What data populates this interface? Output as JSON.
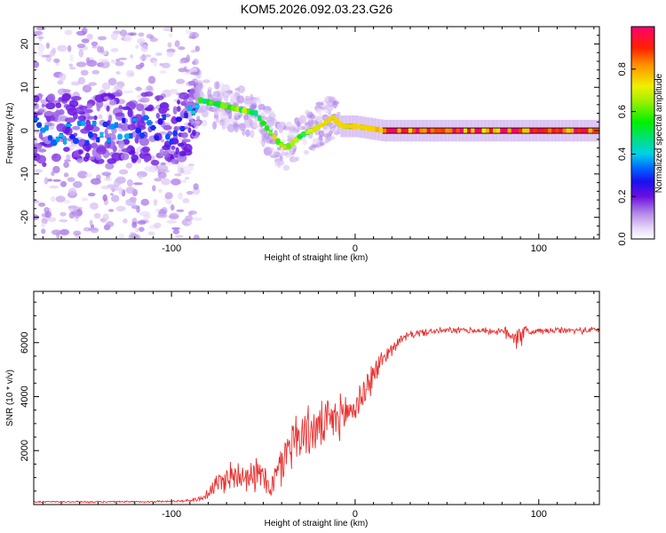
{
  "title": "KOM5.2026.092.03.23.G26",
  "chart_data": [
    {
      "type": "heatmap",
      "xlabel": "Height of straight line (km)",
      "ylabel": "Frequency (Hz)",
      "xlim": [
        -175,
        133
      ],
      "ylim": [
        -25,
        24
      ],
      "xticks": [
        -100,
        0,
        100
      ],
      "yticks": [
        -20,
        -10,
        0,
        10,
        20
      ],
      "xtick_labels": [
        "-100",
        "0",
        "100"
      ],
      "ytick_labels": [
        "-20",
        "-10",
        "0",
        "10",
        "20"
      ],
      "colorbar": {
        "label": "Normalized spectral amplitude",
        "range": [
          0,
          1
        ],
        "ticks": [
          0.0,
          0.2,
          0.4,
          0.6,
          0.8
        ],
        "tick_labels": [
          "0.0",
          "0.2",
          "0.4",
          "0.6",
          "0.8"
        ]
      },
      "ridge": {
        "x": [
          -180,
          -150,
          -120,
          -95,
          -85,
          -75,
          -65,
          -55,
          -48,
          -42,
          -38,
          -30,
          -20,
          -13,
          -8,
          0,
          15,
          40,
          80,
          133
        ],
        "freq": [
          0,
          0,
          1,
          0,
          7,
          6,
          5,
          4,
          0,
          -3,
          -4,
          -1,
          1,
          3,
          1,
          1,
          0,
          0,
          0,
          0
        ],
        "peak_amplitude": [
          0.3,
          0.3,
          0.3,
          0.25,
          0.45,
          0.5,
          0.55,
          0.5,
          0.6,
          0.65,
          0.65,
          0.55,
          0.65,
          0.7,
          0.75,
          0.8,
          0.95,
          0.95,
          0.95,
          1.0
        ]
      }
    },
    {
      "type": "line",
      "xlabel": "Height of straight line (km)",
      "ylabel": "SNR (10 * v/v)",
      "xlim": [
        -175,
        133
      ],
      "ylim": [
        0,
        7900
      ],
      "xticks": [
        -100,
        0,
        100
      ],
      "yticks": [
        2000,
        4000,
        6000
      ],
      "xtick_labels": [
        "-100",
        "0",
        "100"
      ],
      "ytick_labels": [
        "2000",
        "4000",
        "6000"
      ],
      "color": "#e8302f",
      "series": [
        {
          "name": "SNR",
          "x": [
            -175,
            -150,
            -120,
            -100,
            -90,
            -83,
            -78,
            -70,
            -60,
            -50,
            -45,
            -40,
            -35,
            -30,
            -20,
            -10,
            0,
            10,
            15,
            20,
            25,
            30,
            40,
            50,
            60,
            70,
            80,
            88,
            95,
            110,
            120,
            133
          ],
          "values": [
            100,
            100,
            100,
            120,
            150,
            250,
            600,
            1000,
            1200,
            1000,
            700,
            1500,
            2400,
            2600,
            2800,
            3200,
            3600,
            4800,
            5400,
            5800,
            6100,
            6300,
            6400,
            6450,
            6450,
            6450,
            6400,
            6300,
            6400,
            6450,
            6450,
            6480
          ],
          "noise_amplitude": [
            40,
            40,
            40,
            40,
            60,
            150,
            450,
            700,
            800,
            800,
            700,
            1100,
            1300,
            1200,
            1100,
            1000,
            900,
            700,
            450,
            300,
            220,
            180,
            160,
            150,
            150,
            150,
            150,
            800,
            160,
            150,
            150,
            150
          ]
        }
      ]
    }
  ]
}
